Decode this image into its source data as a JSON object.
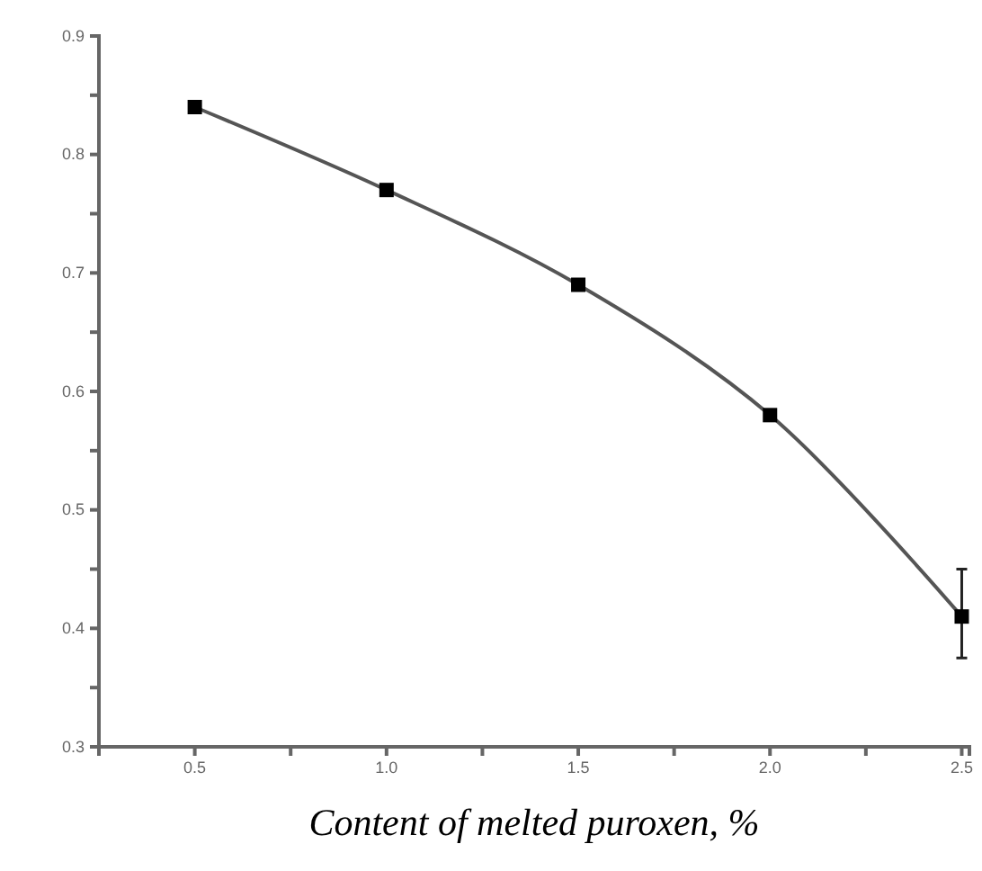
{
  "chart_data": {
    "type": "line",
    "xlabel": "Content of melted puroxen, %",
    "x": [
      0.5,
      1.0,
      1.5,
      2.0,
      2.5
    ],
    "series": [
      {
        "color": "#555555",
        "values": [
          0.84,
          0.77,
          0.69,
          0.58,
          0.41
        ],
        "errors": [
          null,
          null,
          null,
          null,
          [
            0.375,
            0.45
          ]
        ]
      }
    ],
    "xlim": [
      0.25,
      2.52
    ],
    "xticks": [
      {
        "value": 0.5,
        "label": "0.5"
      },
      {
        "value": 0.75,
        "label": null
      },
      {
        "value": 1.0,
        "label": "1.0"
      },
      {
        "value": 1.25,
        "label": null
      },
      {
        "value": 1.5,
        "label": "1.5"
      },
      {
        "value": 1.75,
        "label": null
      },
      {
        "value": 2.0,
        "label": "2.0"
      },
      {
        "value": 2.25,
        "label": null
      },
      {
        "value": 2.5,
        "label": "2.5"
      }
    ],
    "ylim": [
      0.3,
      0.9
    ],
    "yticks": [
      0.3,
      {
        "value": 0.35,
        "label": null
      },
      0.4,
      {
        "value": 0.45,
        "label": null
      },
      0.5,
      {
        "value": 0.55,
        "label": null
      },
      0.6,
      {
        "value": 0.65,
        "label": null
      },
      0.7,
      {
        "value": 0.75,
        "label": null
      },
      0.8,
      {
        "value": 0.85,
        "label": null
      },
      0.9
    ],
    "marker": "square",
    "line_style": "solid"
  }
}
